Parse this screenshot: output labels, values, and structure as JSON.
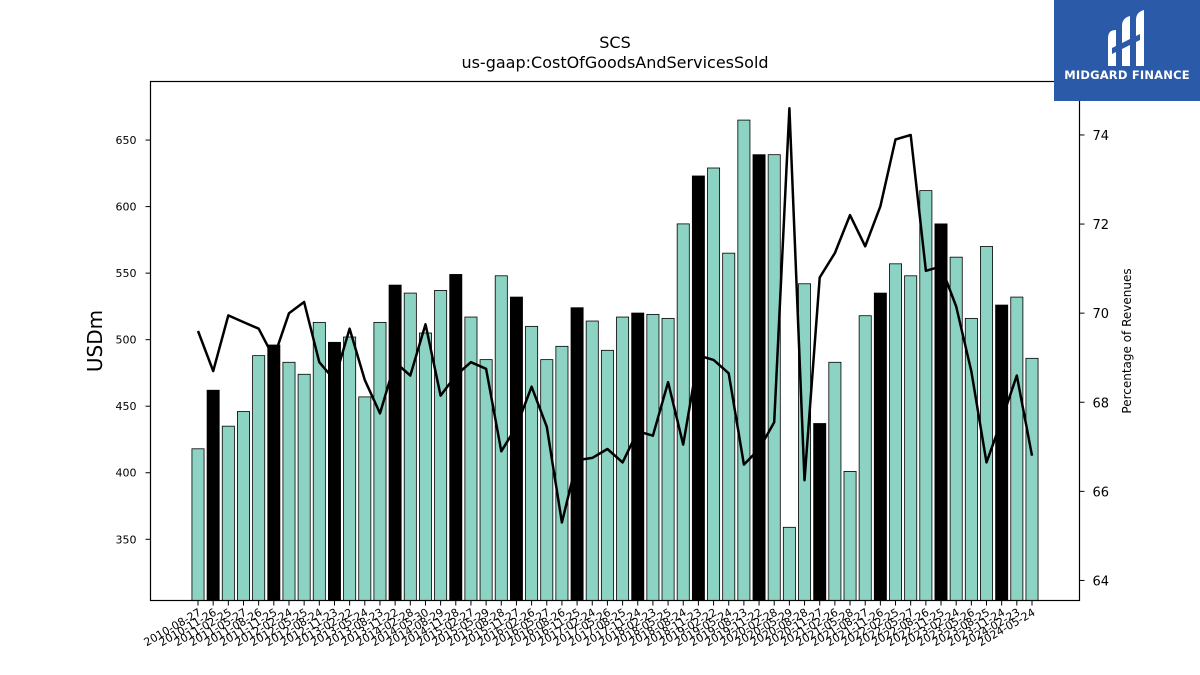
{
  "brand": {
    "name": "MIDGARD FINANCE"
  },
  "chart_data": {
    "type": "bar",
    "title": "SCS",
    "subtitle": "us-gaap:CostOfGoodsAndServicesSold",
    "ylabel": "USDm",
    "y2label": "Percentage of Revenues",
    "ylim": [
      304,
      694
    ],
    "y2lim": [
      63.55,
      75.2
    ],
    "yticks": [
      350,
      400,
      450,
      500,
      550,
      600,
      650
    ],
    "y2ticks": [
      64,
      66,
      68,
      70,
      72,
      74
    ],
    "colors": {
      "bar": "#8dd3c3",
      "bar_highlight": "#000000",
      "line": "#000000"
    },
    "categories": [
      "2010-08-27",
      "2010-11-26",
      "2011-02-25",
      "2011-05-27",
      "2011-08-26",
      "2011-11-25",
      "2012-02-24",
      "2012-05-25",
      "2012-08-24",
      "2012-11-23",
      "2013-02-22",
      "2013-05-24",
      "2013-08-23",
      "2013-11-22",
      "2014-02-28",
      "2014-05-30",
      "2014-08-29",
      "2014-11-28",
      "2015-02-27",
      "2015-05-29",
      "2015-08-28",
      "2015-11-27",
      "2016-02-26",
      "2016-05-27",
      "2016-08-26",
      "2016-11-25",
      "2017-02-24",
      "2017-05-26",
      "2017-08-25",
      "2017-11-24",
      "2018-02-23",
      "2018-05-25",
      "2018-08-24",
      "2018-11-23",
      "2019-02-22",
      "2019-05-24",
      "2019-08-23",
      "2019-11-22",
      "2020-02-28",
      "2020-05-29",
      "2020-08-28",
      "2020-11-27",
      "2021-02-26",
      "2021-05-28",
      "2021-08-27",
      "2021-11-26",
      "2022-02-25",
      "2022-05-27",
      "2022-08-26",
      "2022-11-25",
      "2023-02-24",
      "2023-05-26",
      "2023-08-25",
      "2023-11-24",
      "2024-02-23",
      "2024-05-24"
    ],
    "values": [
      418,
      462,
      435,
      446,
      488,
      496,
      483,
      474,
      513,
      498,
      502,
      457,
      513,
      541,
      535,
      505,
      537,
      549,
      517,
      485,
      548,
      532,
      510,
      485,
      495,
      524,
      514,
      492,
      517,
      520,
      519,
      516,
      587,
      623,
      629,
      565,
      665,
      639,
      639,
      359,
      542,
      437,
      483,
      401,
      518,
      535,
      557,
      548,
      612,
      587,
      562,
      516,
      570,
      526,
      532,
      486
    ],
    "highlight": [
      false,
      true,
      false,
      false,
      false,
      true,
      false,
      false,
      false,
      true,
      false,
      false,
      false,
      true,
      false,
      false,
      false,
      true,
      false,
      false,
      false,
      true,
      false,
      false,
      false,
      true,
      false,
      false,
      false,
      true,
      false,
      false,
      false,
      true,
      false,
      false,
      false,
      true,
      false,
      false,
      false,
      true,
      false,
      false,
      false,
      true,
      false,
      false,
      false,
      true,
      false,
      false,
      false,
      true,
      false,
      false
    ],
    "line_values": [
      69.6,
      68.7,
      69.95,
      69.8,
      69.65,
      69.0,
      70.0,
      70.25,
      68.9,
      68.5,
      69.65,
      68.5,
      67.75,
      68.9,
      68.6,
      69.75,
      68.15,
      68.6,
      68.9,
      68.75,
      66.9,
      67.45,
      68.35,
      67.45,
      65.3,
      66.7,
      66.75,
      66.95,
      66.65,
      67.35,
      67.25,
      68.45,
      67.05,
      69.05,
      68.95,
      68.65,
      66.6,
      66.95,
      67.55,
      74.6,
      66.25,
      70.8,
      71.35,
      72.2,
      71.5,
      72.4,
      73.9,
      74.0,
      70.95,
      71.05,
      70.15,
      68.7,
      66.65,
      67.6,
      68.6,
      66.8
    ]
  }
}
